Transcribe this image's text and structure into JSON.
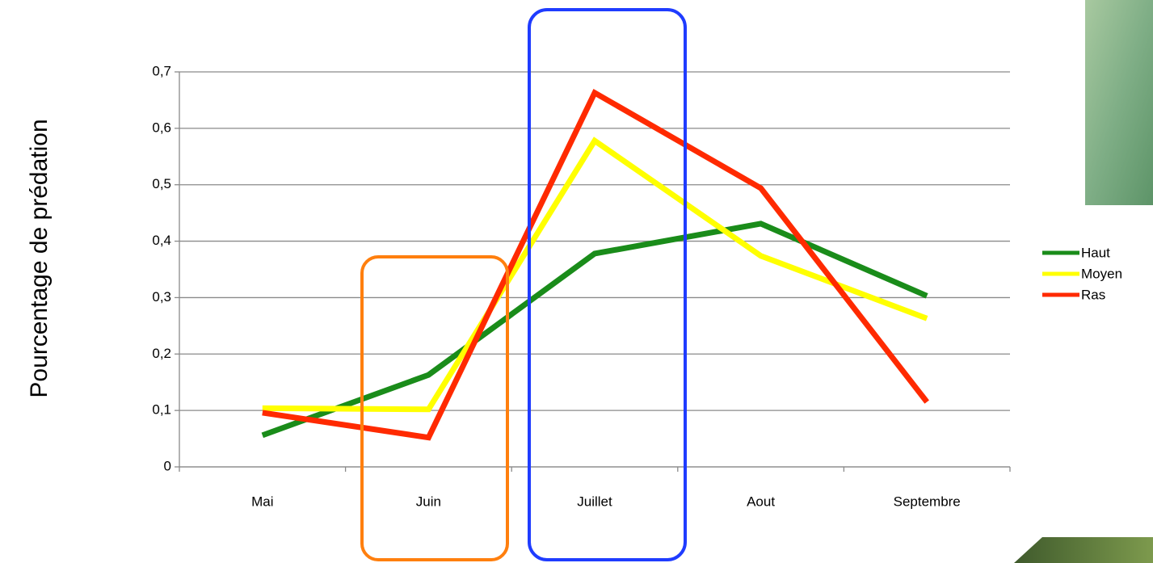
{
  "chart_data": {
    "type": "line",
    "y_label": "Pourcentage de prédation",
    "categories": [
      "Mai",
      "Juin",
      "Juillet",
      "Aout",
      "Septembre"
    ],
    "series": [
      {
        "name": "Haut",
        "color": "#1a8c1a",
        "values": [
          0.056,
          0.163,
          0.378,
          0.431,
          0.303
        ]
      },
      {
        "name": "Moyen",
        "color": "#ffff00",
        "values": [
          0.104,
          0.102,
          0.578,
          0.374,
          0.263
        ]
      },
      {
        "name": "Ras",
        "color": "#ff2a00",
        "values": [
          0.096,
          0.052,
          0.663,
          0.494,
          0.115
        ]
      }
    ],
    "ylim": [
      0,
      0.7
    ],
    "yticks": [
      0,
      {
        "value": 0.1,
        "label": "0,1"
      },
      {
        "value": 0.2,
        "label": "0,2"
      },
      {
        "value": 0.3,
        "label": "0,3"
      },
      {
        "value": 0.4,
        "label": "0,4"
      },
      {
        "value": 0.5,
        "label": "0,5"
      },
      {
        "value": 0.6,
        "label": "0,6"
      },
      {
        "value": 0.7,
        "label": "0,7"
      }
    ],
    "grid": true,
    "legend": "right"
  }
}
